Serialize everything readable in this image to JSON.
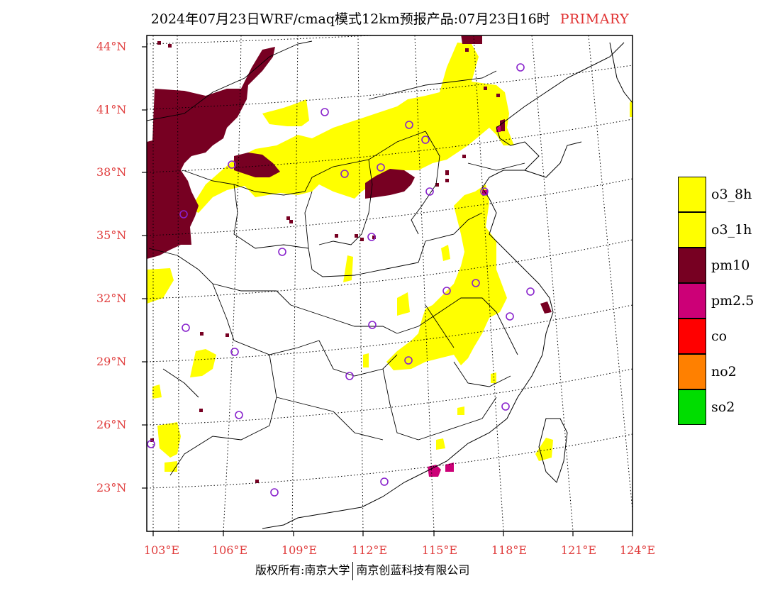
{
  "header": {
    "title": "2024年07月23日WRF/cmaq模式12km预报产品:07月23日16时",
    "status": "PRIMARY"
  },
  "map": {
    "lat_labels": [
      "44°N",
      "41°N",
      "38°N",
      "35°N",
      "32°N",
      "29°N",
      "26°N",
      "23°N"
    ],
    "lon_labels": [
      "103°E",
      "106°E",
      "109°E",
      "112°E",
      "115°E",
      "118°E",
      "121°E",
      "124°E"
    ],
    "pollutant_colors": {
      "o3": "#ffff00",
      "pm10": "#770022",
      "pm25": "#cc0077",
      "station_marker": "#8822cc"
    }
  },
  "legend": {
    "items": [
      {
        "label": "o3_8h",
        "color": "#ffff00"
      },
      {
        "label": "o3_1h",
        "color": "#ffff00"
      },
      {
        "label": "pm10",
        "color": "#770022"
      },
      {
        "label": "pm2.5",
        "color": "#cc0077"
      },
      {
        "label": "co",
        "color": "#ff0000"
      },
      {
        "label": "no2",
        "color": "#ff8000"
      },
      {
        "label": "so2",
        "color": "#00dd00"
      }
    ]
  },
  "footer": {
    "copyright": "版权所有:南京大学",
    "company": "南京创蓝科技有限公司"
  }
}
